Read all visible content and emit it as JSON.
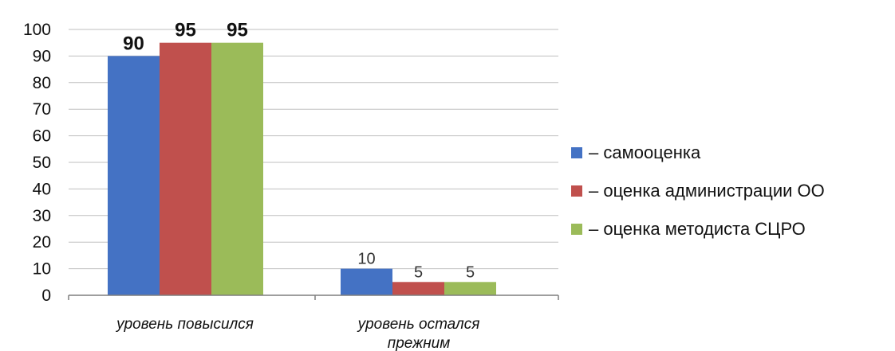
{
  "chart_data": {
    "type": "bar",
    "categories": [
      "уровень повысился",
      "уровень остался прежним"
    ],
    "series": [
      {
        "name": "– самооценка",
        "values": [
          90,
          10
        ],
        "color": "#4472c4"
      },
      {
        "name": "– оценка администрации ОО",
        "values": [
          95,
          5
        ],
        "color": "#c0504d"
      },
      {
        "name": "– оценка методиста СЦРО",
        "values": [
          95,
          5
        ],
        "color": "#9bbb59"
      }
    ],
    "ylim": [
      0,
      100
    ],
    "yticks": [
      0,
      10,
      20,
      30,
      40,
      50,
      60,
      70,
      80,
      90,
      100
    ],
    "grid": true,
    "legend": "right",
    "title": "",
    "xlabel": "",
    "ylabel": ""
  }
}
